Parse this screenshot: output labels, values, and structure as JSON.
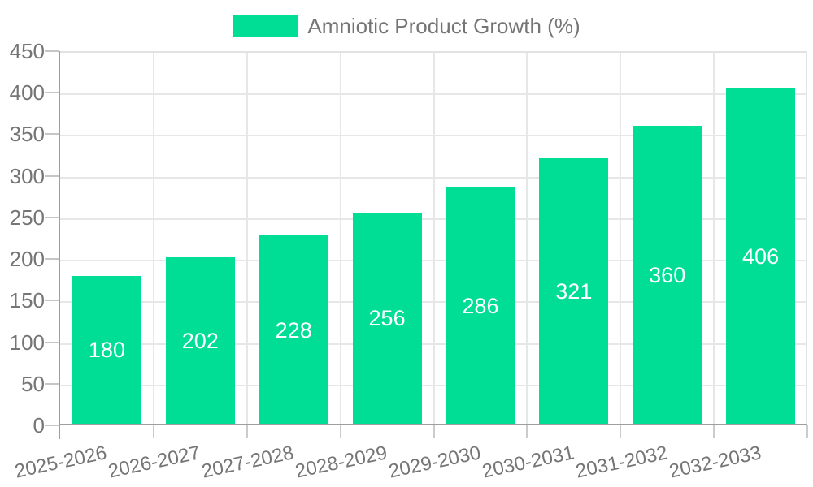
{
  "chart_data": {
    "type": "bar",
    "title": "Amniotic Product Growth (%)",
    "categories": [
      "2025-2026",
      "2026-2027",
      "2027-2028",
      "2028-2029",
      "2029-2030",
      "2030-2031",
      "2031-2032",
      "2032-2033"
    ],
    "values": [
      180,
      202,
      228,
      256,
      286,
      321,
      360,
      406
    ],
    "xlabel": "",
    "ylabel": "",
    "ylim": [
      0,
      450
    ],
    "y_ticks": [
      0,
      50,
      100,
      150,
      200,
      250,
      300,
      350,
      400,
      450
    ],
    "grid": true,
    "legend_position": "top",
    "bar_color": "#00de95",
    "bar_label_color": "#ffffff",
    "axis_text_color": "#757575",
    "grid_color": "#e7e7e7",
    "axis_line_color": "#9e9e9e"
  }
}
